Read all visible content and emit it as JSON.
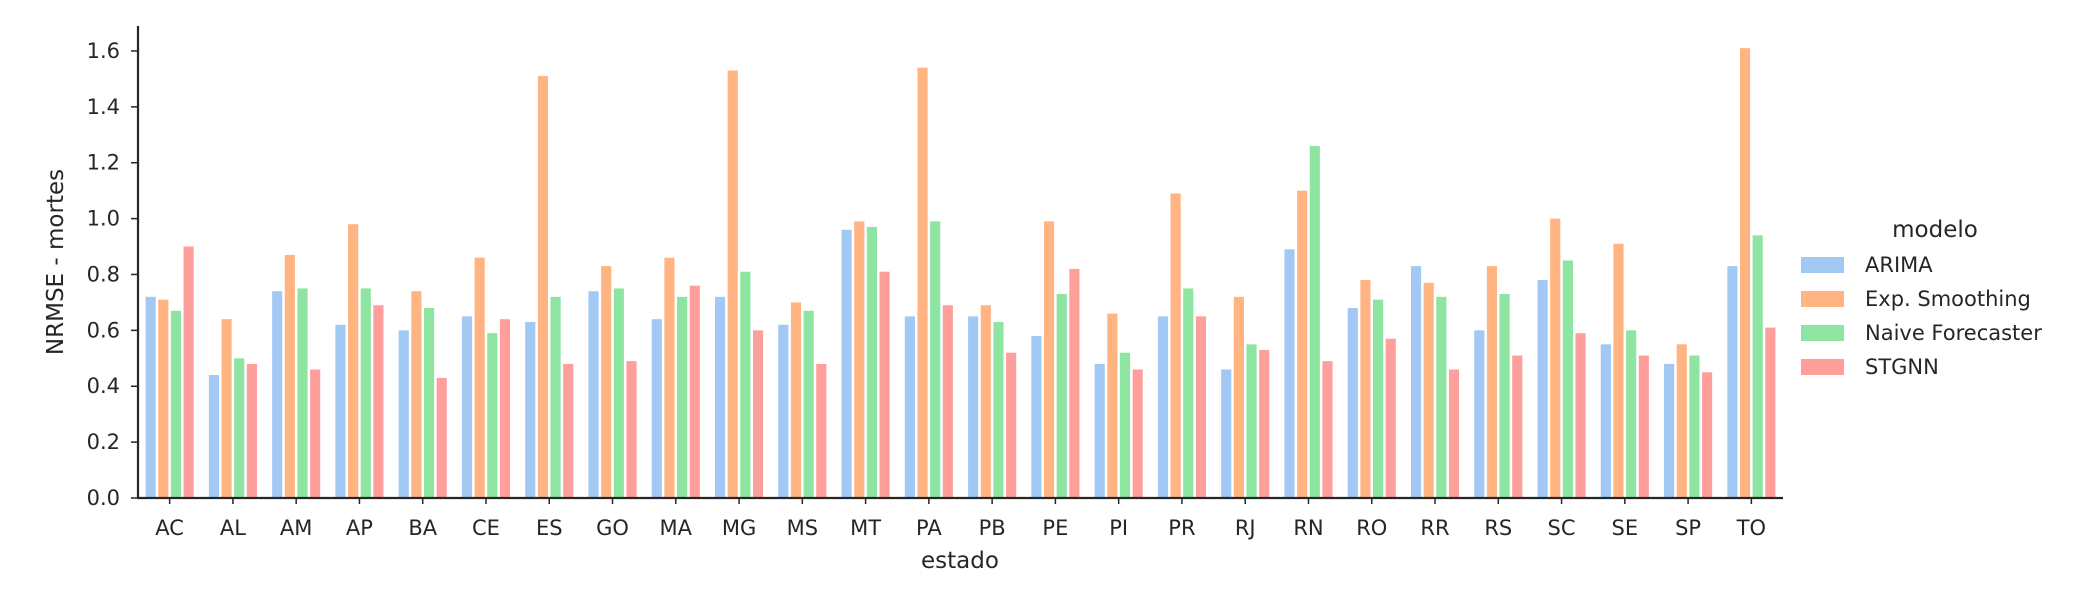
{
  "chart_data": {
    "type": "bar",
    "title": "",
    "xlabel": "estado",
    "ylabel": "NRMSE - mortes",
    "ylim": [
      0,
      1.7
    ],
    "yticks": [
      "0.0",
      "0.2",
      "0.4",
      "0.6",
      "0.8",
      "1.0",
      "1.2",
      "1.4",
      "1.6"
    ],
    "grid": false,
    "legend_title": "modelo",
    "legend_position": "right",
    "categories": [
      "AC",
      "AL",
      "AM",
      "AP",
      "BA",
      "CE",
      "ES",
      "GO",
      "MA",
      "MG",
      "MS",
      "MT",
      "PA",
      "PB",
      "PE",
      "PI",
      "PR",
      "RJ",
      "RN",
      "RO",
      "RR",
      "RS",
      "SC",
      "SE",
      "SP",
      "TO"
    ],
    "series": [
      {
        "name": "ARIMA",
        "color": "#a1c9f4",
        "values": [
          0.72,
          0.44,
          0.74,
          0.62,
          0.6,
          0.65,
          0.63,
          0.74,
          0.64,
          0.72,
          0.62,
          0.96,
          0.65,
          0.65,
          0.58,
          0.48,
          0.65,
          0.46,
          0.89,
          0.68,
          0.83,
          0.6,
          0.78,
          0.55,
          0.48,
          0.83
        ]
      },
      {
        "name": "Exp. Smoothing",
        "color": "#ffb482",
        "values": [
          0.71,
          0.64,
          0.87,
          0.98,
          0.74,
          0.86,
          1.51,
          0.83,
          0.86,
          1.53,
          0.7,
          0.99,
          1.54,
          0.69,
          0.99,
          0.66,
          1.09,
          0.72,
          1.1,
          0.78,
          0.77,
          0.83,
          1.0,
          0.91,
          0.55,
          1.61
        ]
      },
      {
        "name": "Naive Forecaster",
        "color": "#8de5a1",
        "values": [
          0.67,
          0.5,
          0.75,
          0.75,
          0.68,
          0.59,
          0.72,
          0.75,
          0.72,
          0.81,
          0.67,
          0.97,
          0.99,
          0.63,
          0.73,
          0.52,
          0.75,
          0.55,
          1.26,
          0.71,
          0.72,
          0.73,
          0.85,
          0.6,
          0.51,
          0.94
        ]
      },
      {
        "name": "STGNN",
        "color": "#ff9f9b",
        "values": [
          0.9,
          0.48,
          0.46,
          0.69,
          0.43,
          0.64,
          0.48,
          0.49,
          0.76,
          0.6,
          0.48,
          0.81,
          0.69,
          0.52,
          0.82,
          0.46,
          0.65,
          0.53,
          0.49,
          0.57,
          0.46,
          0.51,
          0.59,
          0.51,
          0.45,
          0.61
        ]
      }
    ]
  }
}
